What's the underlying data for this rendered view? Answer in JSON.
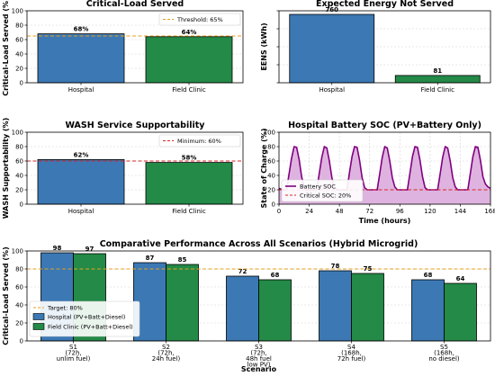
{
  "chart_data": [
    {
      "type": "bar",
      "title": "Critical-Load Served",
      "xlabel": "",
      "ylabel": "Critical-Load Served (%)",
      "categories": [
        "Hospital",
        "Field Clinic"
      ],
      "values": [
        68,
        64
      ],
      "data_labels": [
        "68%",
        "64%"
      ],
      "ylim": [
        0,
        100
      ],
      "yticks": [
        "0",
        "20",
        "40",
        "60",
        "80",
        "100"
      ],
      "threshold": {
        "value": 65,
        "label": "Threshold: 65%",
        "color": "#e3a11c",
        "style": "dashed"
      },
      "bar_colors": [
        "#3b78b4",
        "#238a47"
      ],
      "legend_position": "top-right",
      "grid": true
    },
    {
      "type": "bar",
      "title": "Expected Energy Not Served",
      "xlabel": "",
      "ylabel": "EENS (kWh)",
      "categories": [
        "Hospital",
        "Field Clinic"
      ],
      "values": [
        760,
        81
      ],
      "data_labels": [
        "760",
        "81"
      ],
      "ylim": [
        0,
        800
      ],
      "yticks": [],
      "bar_colors": [
        "#3b78b4",
        "#238a47"
      ],
      "grid": true
    },
    {
      "type": "bar",
      "title": "WASH Service Supportability",
      "xlabel": "",
      "ylabel": "WASH Supportability (%)",
      "categories": [
        "Hospital",
        "Field Clinic"
      ],
      "values": [
        62,
        58
      ],
      "data_labels": [
        "62%",
        "58%"
      ],
      "ylim": [
        0,
        100
      ],
      "yticks": [
        "0",
        "20",
        "40",
        "60",
        "80",
        "100"
      ],
      "threshold": {
        "value": 60,
        "label": "Minimum: 60%",
        "color": "#d62728",
        "style": "dashed"
      },
      "bar_colors": [
        "#3b78b4",
        "#238a47"
      ],
      "legend_position": "top-right",
      "grid": true
    },
    {
      "type": "area",
      "title": "Hospital Battery SOC (PV+Battery Only)",
      "xlabel": "Time (hours)",
      "ylabel": "State of Charge (%)",
      "xlim": [
        0,
        168
      ],
      "ylim": [
        0,
        100
      ],
      "xticks": [
        "0",
        "24",
        "48",
        "72",
        "96",
        "120",
        "144",
        "168"
      ],
      "yticks": [
        "0",
        "20",
        "40",
        "60",
        "80",
        "100"
      ],
      "series": [
        {
          "name": "Battery SOC",
          "color": "#800080",
          "fill": "#d9a6d9",
          "x": [
            0,
            3,
            6,
            8,
            10,
            12,
            14,
            16,
            18,
            20,
            22,
            24,
            27,
            30,
            32,
            34,
            36,
            38,
            40,
            42,
            44,
            46,
            48,
            51,
            54,
            56,
            58,
            60,
            62,
            64,
            66,
            68,
            70,
            72,
            75,
            78,
            80,
            82,
            84,
            86,
            88,
            90,
            92,
            94,
            96,
            99,
            102,
            104,
            106,
            108,
            110,
            112,
            114,
            116,
            118,
            120,
            123,
            126,
            128,
            130,
            132,
            134,
            136,
            138,
            140,
            142,
            144,
            147,
            150,
            152,
            154,
            156,
            158,
            160,
            162,
            164,
            166,
            168
          ],
          "y": [
            22,
            20,
            20,
            42,
            64,
            80,
            79,
            62,
            38,
            24,
            20,
            20,
            20,
            20,
            43,
            65,
            80,
            78,
            60,
            37,
            24,
            20,
            20,
            20,
            20,
            44,
            66,
            80,
            79,
            61,
            37,
            23,
            20,
            20,
            20,
            20,
            42,
            65,
            80,
            78,
            60,
            37,
            24,
            20,
            20,
            20,
            20,
            43,
            66,
            80,
            79,
            61,
            38,
            23,
            20,
            20,
            20,
            20,
            42,
            65,
            80,
            78,
            60,
            37,
            24,
            20,
            20,
            20,
            20,
            43,
            66,
            80,
            79,
            61,
            38,
            28,
            24,
            22
          ]
        },
        {
          "name": "Critical SOC: 20%",
          "value": 20,
          "color": "#d62728",
          "style": "dashed"
        }
      ],
      "legend_position": "bottom-left",
      "grid": true
    },
    {
      "type": "bar",
      "title": "Comparative Performance Across All Scenarios (Hybrid Microgrid)",
      "xlabel": "Scenario",
      "ylabel": "Critical-Load Served (%)",
      "categories": [
        [
          "S1",
          "(72h,",
          "unlim fuel)"
        ],
        [
          "S2",
          "(72h,",
          "24h fuel)"
        ],
        [
          "S3",
          "(72h,",
          "48h fuel",
          "low PV)"
        ],
        [
          "S4",
          "(168h,",
          "72h fuel)"
        ],
        [
          "S5",
          "(168h,",
          "no diesel)"
        ]
      ],
      "ylim": [
        0,
        100
      ],
      "yticks": [
        "0",
        "20",
        "40",
        "60",
        "80",
        "100"
      ],
      "series": [
        {
          "name": "Hospital (PV+Batt+Diesel)",
          "color": "#3b78b4",
          "values": [
            98,
            87,
            72,
            78,
            68
          ]
        },
        {
          "name": "Field Clinic (PV+Batt+Diesel)",
          "color": "#238a47",
          "values": [
            97,
            85,
            68,
            75,
            64
          ]
        }
      ],
      "threshold": {
        "value": 80,
        "label": "Target: 80%",
        "color": "#e3a11c",
        "style": "dashed"
      },
      "legend_position": "lower-left",
      "grid": true
    }
  ]
}
